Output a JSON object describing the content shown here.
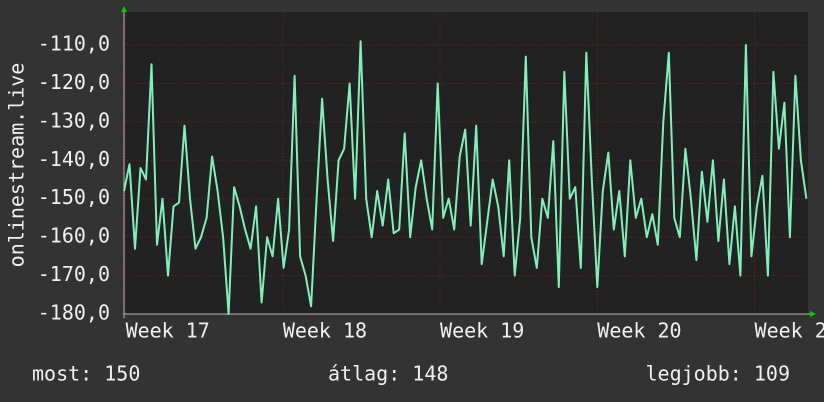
{
  "chart_data": {
    "type": "line",
    "y_label": "onlinestream.live",
    "color": "#80f0b8",
    "grid": true,
    "xlim": [
      16.99,
      21.34
    ],
    "xticks": [
      {
        "value": 17,
        "label": "Week 17"
      },
      {
        "value": 18,
        "label": "Week 18"
      },
      {
        "value": 19,
        "label": "Week 19"
      },
      {
        "value": 20,
        "label": "Week 20"
      },
      {
        "value": 21,
        "label": "Week 21"
      }
    ],
    "ylim": [
      -180,
      -101.4
    ],
    "yticks": [
      {
        "value": -180,
        "label": "-180,0"
      },
      {
        "value": -170,
        "label": "-170,0"
      },
      {
        "value": -160,
        "label": "-160,0"
      },
      {
        "value": -150,
        "label": "-150,0"
      },
      {
        "value": -140,
        "label": "-140,0"
      },
      {
        "value": -130,
        "label": "-130,0"
      },
      {
        "value": -120,
        "label": "-120,0"
      },
      {
        "value": -110,
        "label": "-110,0"
      }
    ],
    "x": [
      16.99,
      17.025,
      17.06,
      17.095,
      17.13,
      17.165,
      17.2,
      17.235,
      17.27,
      17.305,
      17.34,
      17.375,
      17.41,
      17.445,
      17.48,
      17.515,
      17.55,
      17.585,
      17.62,
      17.655,
      17.69,
      17.725,
      17.76,
      17.795,
      17.83,
      17.865,
      17.9,
      17.935,
      17.97,
      18.005,
      18.04,
      18.075,
      18.11,
      18.145,
      18.18,
      18.215,
      18.25,
      18.285,
      18.32,
      18.355,
      18.39,
      18.425,
      18.46,
      18.495,
      18.53,
      18.565,
      18.6,
      18.635,
      18.67,
      18.705,
      18.74,
      18.775,
      18.81,
      18.845,
      18.88,
      18.915,
      18.95,
      18.985,
      19.02,
      19.055,
      19.09,
      19.125,
      19.16,
      19.195,
      19.23,
      19.265,
      19.3,
      19.335,
      19.37,
      19.405,
      19.44,
      19.475,
      19.51,
      19.545,
      19.58,
      19.615,
      19.65,
      19.685,
      19.72,
      19.755,
      19.79,
      19.825,
      19.86,
      19.895,
      19.93,
      19.965,
      20,
      20.035,
      20.07,
      20.105,
      20.14,
      20.175,
      20.21,
      20.245,
      20.28,
      20.315,
      20.35,
      20.385,
      20.42,
      20.455,
      20.49,
      20.525,
      20.56,
      20.595,
      20.63,
      20.665,
      20.7,
      20.735,
      20.77,
      20.805,
      20.84,
      20.875,
      20.91,
      20.945,
      20.98,
      21.015,
      21.05,
      21.085,
      21.12,
      21.155,
      21.19,
      21.225,
      21.26,
      21.295,
      21.33
    ],
    "values": [
      -148,
      -141,
      -163,
      -142,
      -145,
      -115,
      -162,
      -150,
      -170,
      -152,
      -151,
      -131,
      -150,
      -163,
      -160,
      -155,
      -139,
      -148,
      -160,
      -180,
      -147,
      -152,
      -158,
      -163,
      -152,
      -177,
      -160,
      -165,
      -150,
      -168,
      -158,
      -118,
      -165,
      -170,
      -178,
      -150,
      -124,
      -145,
      -161,
      -140,
      -137,
      -120,
      -150,
      -109,
      -150,
      -160,
      -148,
      -157,
      -145,
      -159,
      -158,
      -133,
      -160,
      -147,
      -140,
      -150,
      -158,
      -120,
      -155,
      -150,
      -158,
      -139,
      -132,
      -157,
      -131,
      -167,
      -156,
      -145,
      -152,
      -165,
      -140,
      -170,
      -155,
      -113,
      -160,
      -168,
      -150,
      -155,
      -135,
      -173,
      -117,
      -150,
      -147,
      -168,
      -112,
      -145,
      -173,
      -148,
      -138,
      -158,
      -148,
      -165,
      -140,
      -155,
      -150,
      -160,
      -154,
      -162,
      -130,
      -112,
      -155,
      -160,
      -137,
      -150,
      -166,
      -143,
      -156,
      -140,
      -161,
      -145,
      -167,
      -152,
      -170,
      -110,
      -165,
      -152,
      -144,
      -170,
      -117,
      -137,
      -125,
      -160,
      -118,
      -140,
      -150
    ]
  },
  "footer": [
    "most: 150",
    "átlag: 148",
    "legjobb: 109"
  ]
}
